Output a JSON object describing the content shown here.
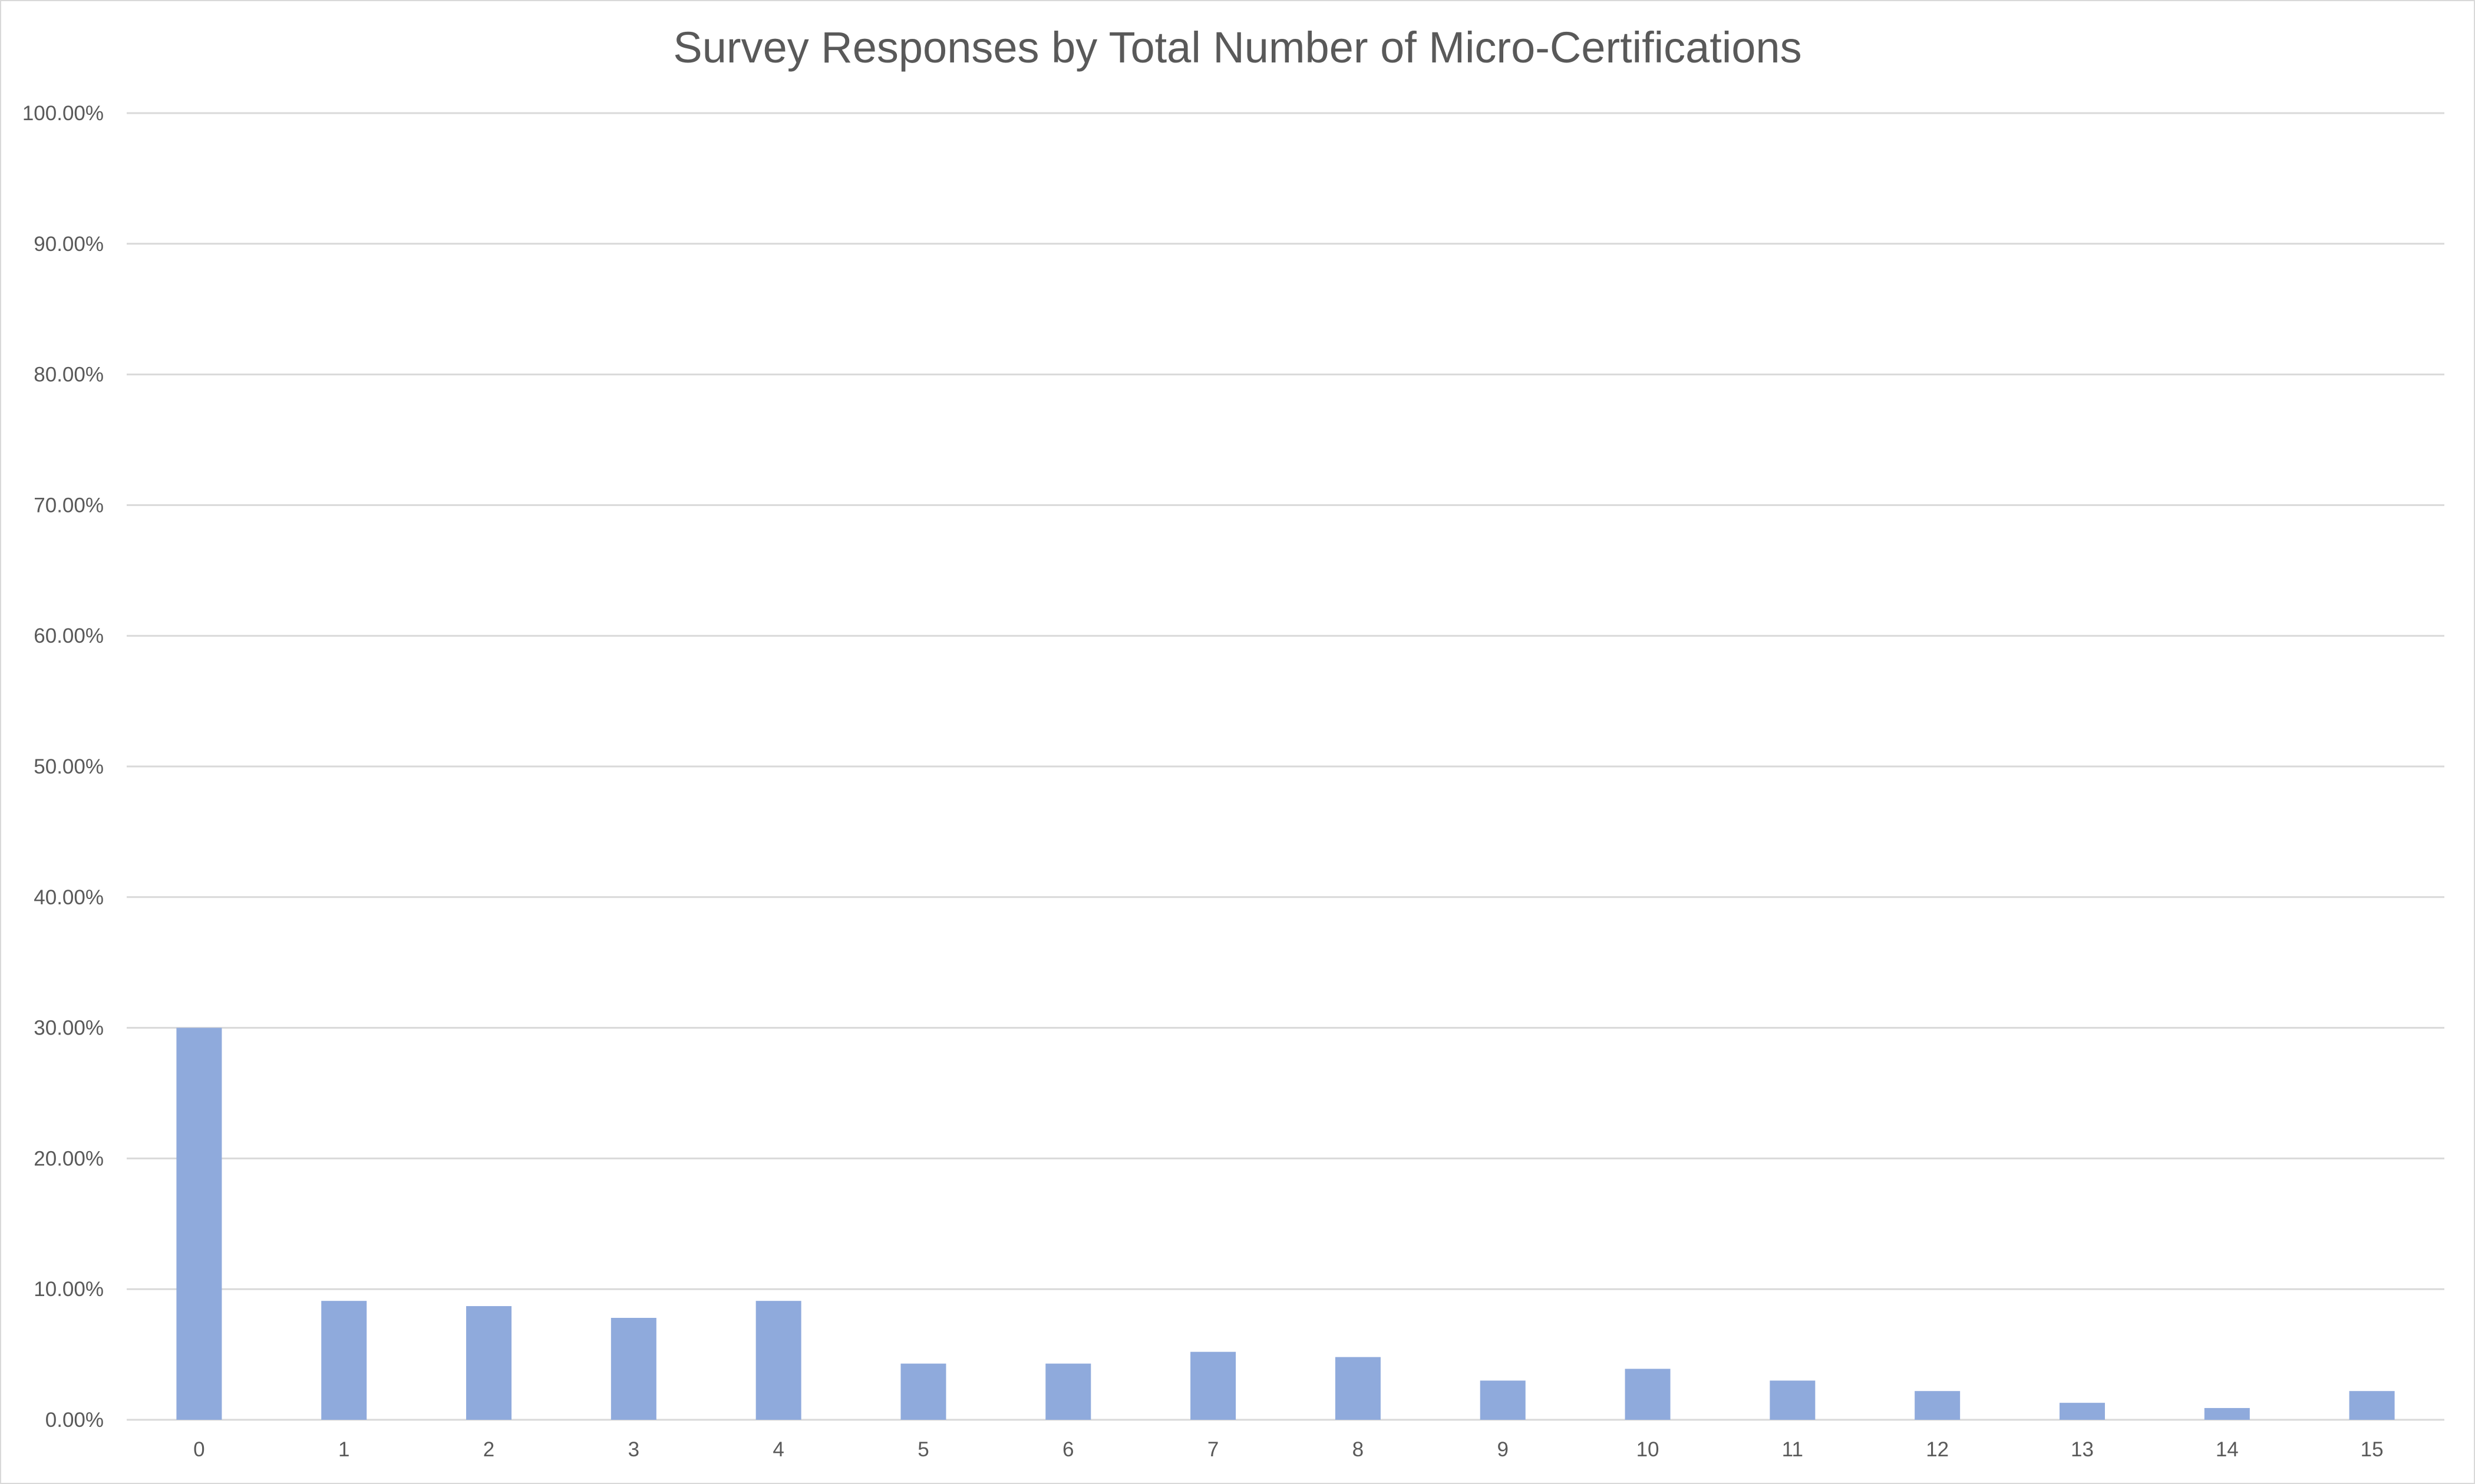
{
  "chart_data": {
    "type": "bar",
    "title": "Survey Responses by Total Number of Micro-Certifications",
    "xlabel": "",
    "ylabel": "",
    "categories": [
      "0",
      "1",
      "2",
      "3",
      "4",
      "5",
      "6",
      "7",
      "8",
      "9",
      "10",
      "11",
      "12",
      "13",
      "14",
      "15"
    ],
    "values": [
      30.0,
      9.1,
      8.7,
      7.8,
      9.1,
      4.3,
      4.3,
      5.2,
      4.8,
      3.0,
      3.9,
      3.0,
      2.2,
      1.3,
      0.9,
      2.2
    ],
    "ylim": [
      0,
      100
    ],
    "yticks": [
      "0.00%",
      "10.00%",
      "20.00%",
      "30.00%",
      "40.00%",
      "50.00%",
      "60.00%",
      "70.00%",
      "80.00%",
      "90.00%",
      "100.00%"
    ],
    "grid": true,
    "legend": "none",
    "colors": {
      "bar": "#8faadc",
      "grid": "#d9d9d9",
      "text": "#595959"
    }
  }
}
